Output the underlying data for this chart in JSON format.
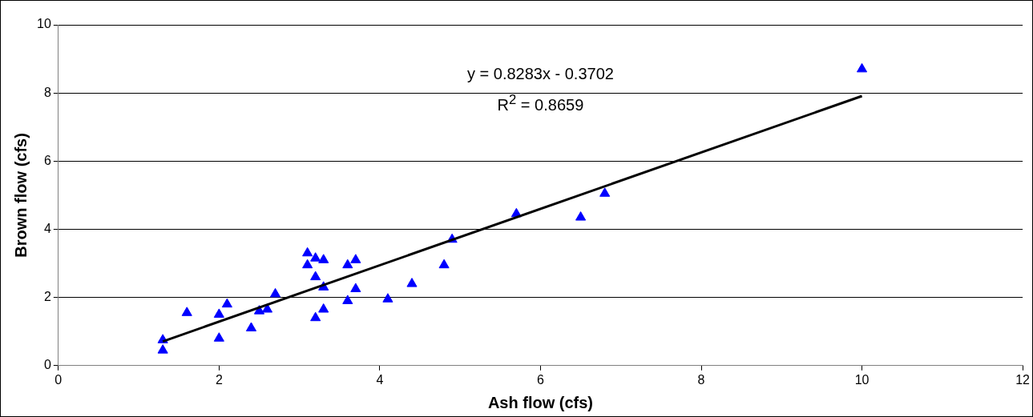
{
  "chart_data": {
    "type": "scatter",
    "xlabel": "Ash flow (cfs)",
    "ylabel": "Brown flow (cfs)",
    "annotations": [
      "y = 0.8283x - 0.3702",
      "R$^{2}$ = 0.8659"
    ],
    "xlim": [
      0,
      12
    ],
    "xticks": [
      0,
      2,
      4,
      6,
      8,
      10,
      12
    ],
    "ylim": [
      0,
      10
    ],
    "yticks": [
      0,
      2,
      4,
      6,
      8,
      10
    ],
    "grid": "y",
    "legend": false,
    "marker": "triangle",
    "series": [
      {
        "type": "scatter",
        "color": "#0000ff",
        "x": [
          1.3,
          1.3,
          1.6,
          2.0,
          2.0,
          2.1,
          2.4,
          2.5,
          2.6,
          2.7,
          3.1,
          3.1,
          3.2,
          3.2,
          3.2,
          3.3,
          3.3,
          3.3,
          3.6,
          3.6,
          3.7,
          3.7,
          4.1,
          4.4,
          4.8,
          4.9,
          5.7,
          6.5,
          6.8,
          10
        ],
        "values": [
          0.75,
          0.45,
          1.55,
          1.5,
          0.8,
          1.8,
          1.1,
          1.6,
          1.65,
          2.1,
          3.3,
          2.95,
          3.15,
          2.6,
          1.4,
          3.1,
          2.3,
          1.65,
          2.95,
          1.9,
          3.1,
          2.25,
          1.95,
          2.4,
          2.95,
          3.7,
          4.45,
          4.35,
          5.05,
          8.7
        ]
      },
      {
        "type": "line",
        "color": "#000000",
        "x": [
          1.3,
          10
        ],
        "values": [
          0.71,
          7.91
        ],
        "marker": "none",
        "line_style": "solid"
      }
    ]
  }
}
